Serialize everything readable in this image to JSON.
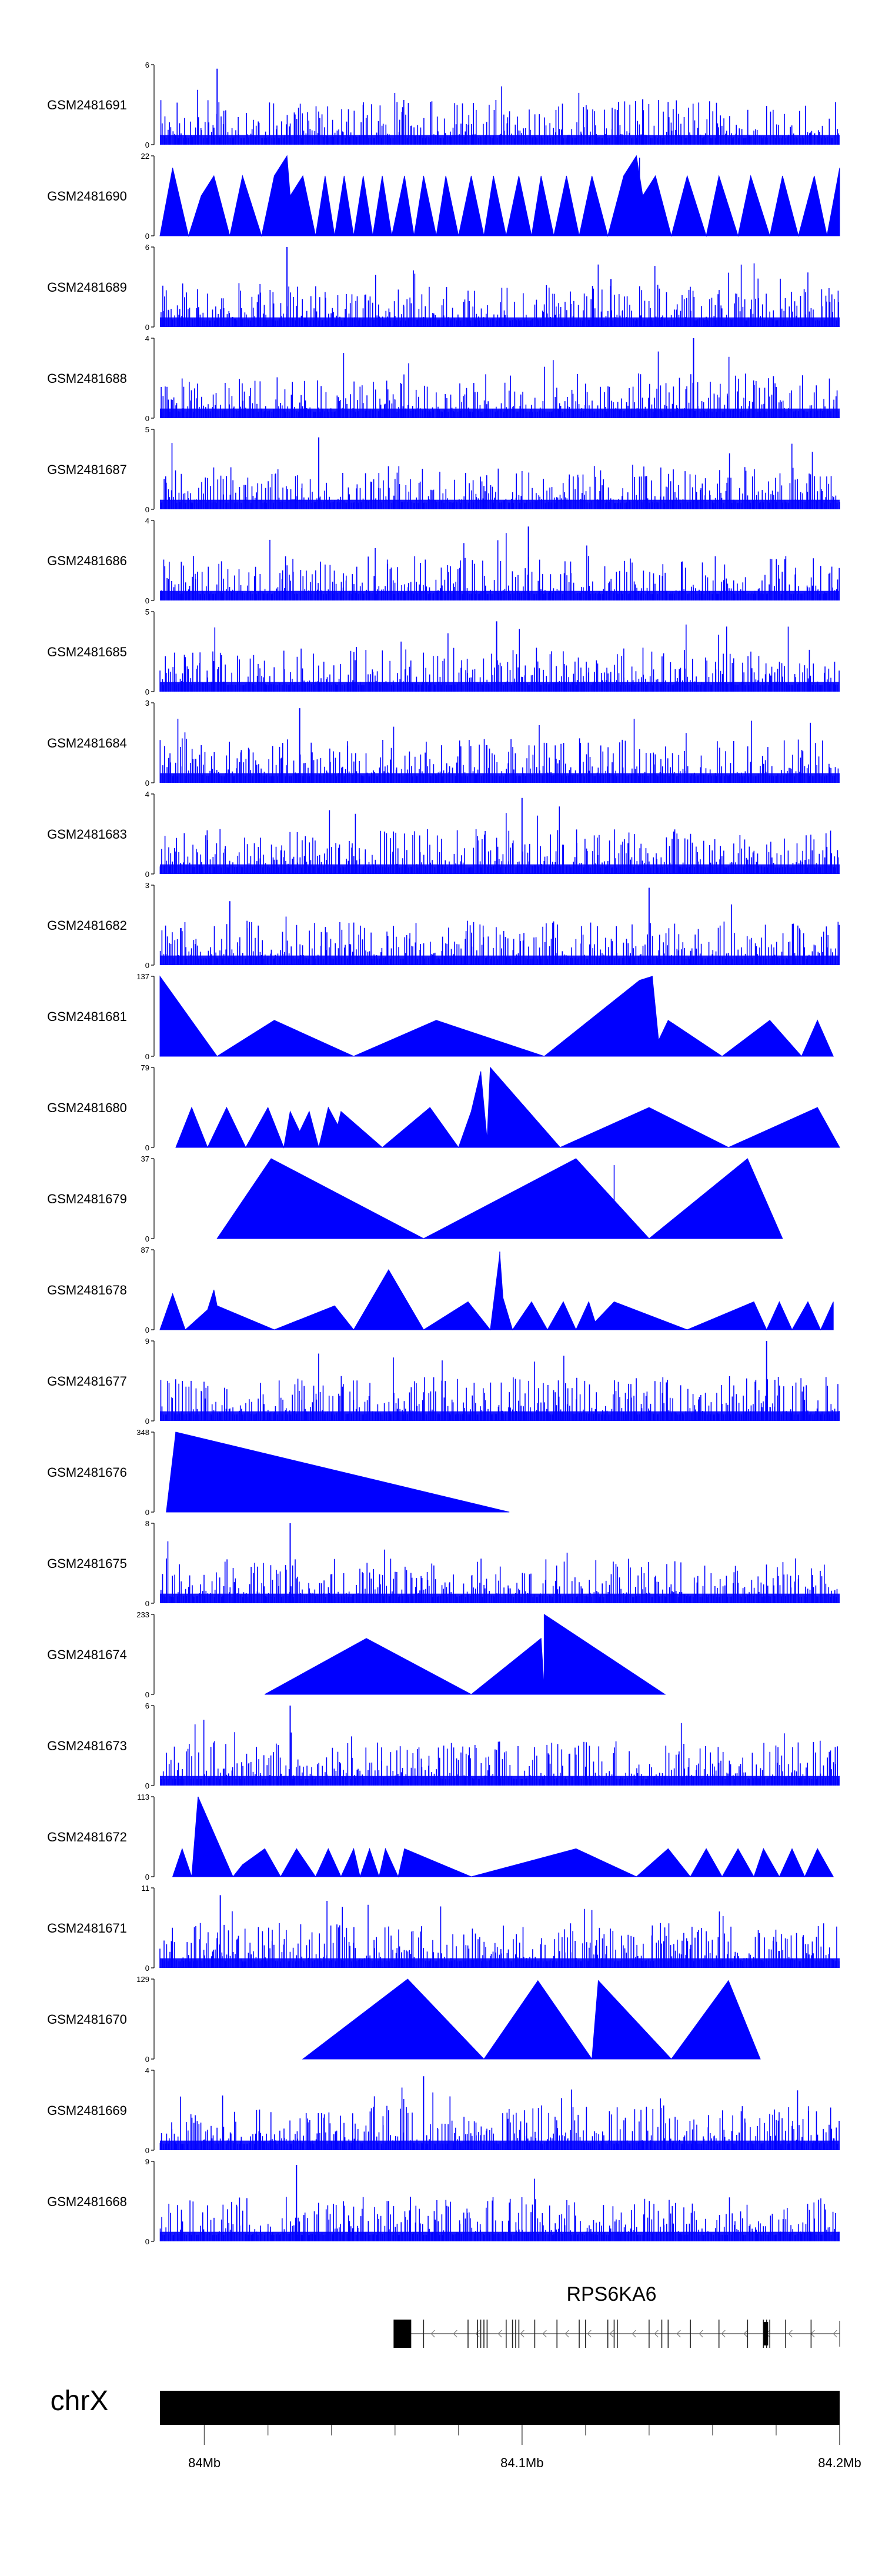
{
  "chart_data": {
    "type": "area",
    "title": "",
    "fill_color": "#0000ff",
    "ideogram_color": "#000000",
    "chromosome": "chrX",
    "gene": {
      "name": "RPS6KA6",
      "strand": "minus",
      "start_mb": 84.064,
      "end_mb": 84.2,
      "exons_mb": [
        84.064,
        84.069,
        84.083,
        84.086,
        84.087,
        84.088,
        84.089,
        84.095,
        84.097,
        84.098,
        84.099,
        84.104,
        84.111,
        84.118,
        84.12,
        84.127,
        84.129,
        84.13,
        84.14,
        84.144,
        84.146,
        84.153,
        84.162,
        84.171,
        84.176,
        84.177,
        84.178,
        84.183,
        84.191
      ]
    },
    "xlim_mb": [
      83.986,
      84.2
    ],
    "x_ticks": [
      {
        "mb": 84.0,
        "label": "84Mb"
      },
      {
        "mb": 84.1,
        "label": "84.1Mb"
      },
      {
        "mb": 84.2,
        "label": "84.2Mb"
      }
    ],
    "minor_ticks_mb": [
      84.02,
      84.04,
      84.06,
      84.08,
      84.12,
      84.14,
      84.16,
      84.18
    ],
    "tracks": [
      {
        "label": "GSM2481691",
        "ymax": 6,
        "ymin": 0,
        "kind": "dense",
        "peaks_mb": [
          [
            84.004,
            5.7
          ],
          [
            84.05,
            3.0
          ],
          [
            84.138,
            3.4
          ],
          [
            84.13,
            2.6
          ]
        ]
      },
      {
        "label": "GSM2481690",
        "ymax": 22,
        "ymin": 0,
        "kind": "triangles",
        "peaks_mb": [
          [
            84.026,
            21.5
          ],
          [
            84.026,
            18
          ],
          [
            84.135,
            20
          ],
          [
            84.137,
            21.5
          ]
        ]
      },
      {
        "label": "GSM2481689",
        "ymax": 6,
        "ymin": 0,
        "kind": "dense",
        "peaks_mb": [
          [
            84.026,
            6
          ],
          [
            84.128,
            3.6
          ]
        ]
      },
      {
        "label": "GSM2481688",
        "ymax": 4,
        "ymin": 0,
        "kind": "dense",
        "peaks_mb": [
          [
            84.154,
            4
          ]
        ]
      },
      {
        "label": "GSM2481687",
        "ymax": 5,
        "ymin": 0,
        "kind": "dense",
        "peaks_mb": [
          [
            84.036,
            4.5
          ]
        ]
      },
      {
        "label": "GSM2481686",
        "ymax": 4,
        "ymin": 0,
        "kind": "dense",
        "peaks_mb": [
          [
            84.102,
            3.7
          ]
        ]
      },
      {
        "label": "GSM2481685",
        "ymax": 5,
        "ymin": 0,
        "kind": "dense",
        "peaks_mb": [
          [
            84.092,
            4.4
          ]
        ]
      },
      {
        "label": "GSM2481684",
        "ymax": 3,
        "ymin": 0,
        "kind": "dense",
        "peaks_mb": [
          [
            84.03,
            2.8
          ]
        ]
      },
      {
        "label": "GSM2481683",
        "ymax": 4,
        "ymin": 0,
        "kind": "dense",
        "peaks_mb": [
          [
            84.1,
            3.8
          ]
        ]
      },
      {
        "label": "GSM2481682",
        "ymax": 3,
        "ymin": 0,
        "kind": "dense",
        "peaks_mb": [
          [
            84.008,
            2.4
          ],
          [
            84.14,
            2.9
          ]
        ]
      },
      {
        "label": "GSM2481681",
        "ymax": 137,
        "ymin": 0,
        "kind": "triangles",
        "peaks_mb": [
          [
            84.141,
            137
          ]
        ]
      },
      {
        "label": "GSM2481680",
        "ymax": 79,
        "ymin": 0,
        "kind": "triangles",
        "peaks_mb": [
          [
            84.09,
            79
          ],
          [
            84.087,
            75
          ]
        ]
      },
      {
        "label": "GSM2481679",
        "ymax": 37,
        "ymin": 0,
        "kind": "triangles",
        "peaks_mb": [
          [
            84.129,
            34
          ]
        ]
      },
      {
        "label": "GSM2481678",
        "ymax": 87,
        "ymin": 0,
        "kind": "triangles",
        "peaks_mb": [
          [
            84.093,
            85
          ]
        ]
      },
      {
        "label": "GSM2481677",
        "ymax": 9,
        "ymin": 0,
        "kind": "dense",
        "peaks_mb": [
          [
            84.177,
            9
          ]
        ]
      },
      {
        "label": "GSM2481676",
        "ymax": 348,
        "ymin": 0,
        "kind": "triangles",
        "peaks_mb": [
          [
            83.991,
            348
          ]
        ]
      },
      {
        "label": "GSM2481675",
        "ymax": 8,
        "ymin": 0,
        "kind": "dense",
        "peaks_mb": [
          [
            84.027,
            8
          ]
        ]
      },
      {
        "label": "GSM2481674",
        "ymax": 233,
        "ymin": 0,
        "kind": "triangles",
        "peaks_mb": [
          [
            84.107,
            233
          ]
        ]
      },
      {
        "label": "GSM2481673",
        "ymax": 6,
        "ymin": 0,
        "kind": "dense",
        "peaks_mb": [
          [
            84.027,
            6
          ]
        ]
      },
      {
        "label": "GSM2481672",
        "ymax": 113,
        "ymin": 0,
        "kind": "triangles",
        "peaks_mb": [
          [
            83.998,
            113
          ]
        ]
      },
      {
        "label": "GSM2481671",
        "ymax": 11,
        "ymin": 0,
        "kind": "dense",
        "peaks_mb": [
          [
            84.005,
            10
          ]
        ]
      },
      {
        "label": "GSM2481670",
        "ymax": 129,
        "ymin": 0,
        "kind": "triangles",
        "peaks_mb": [
          [
            84.064,
            129
          ]
        ]
      },
      {
        "label": "GSM2481669",
        "ymax": 4,
        "ymin": 0,
        "kind": "dense",
        "peaks_mb": [
          [
            84.069,
            3.7
          ]
        ]
      },
      {
        "label": "GSM2481668",
        "ymax": 9,
        "ymin": 0,
        "kind": "dense",
        "peaks_mb": [
          [
            84.029,
            8.6
          ]
        ]
      }
    ]
  }
}
